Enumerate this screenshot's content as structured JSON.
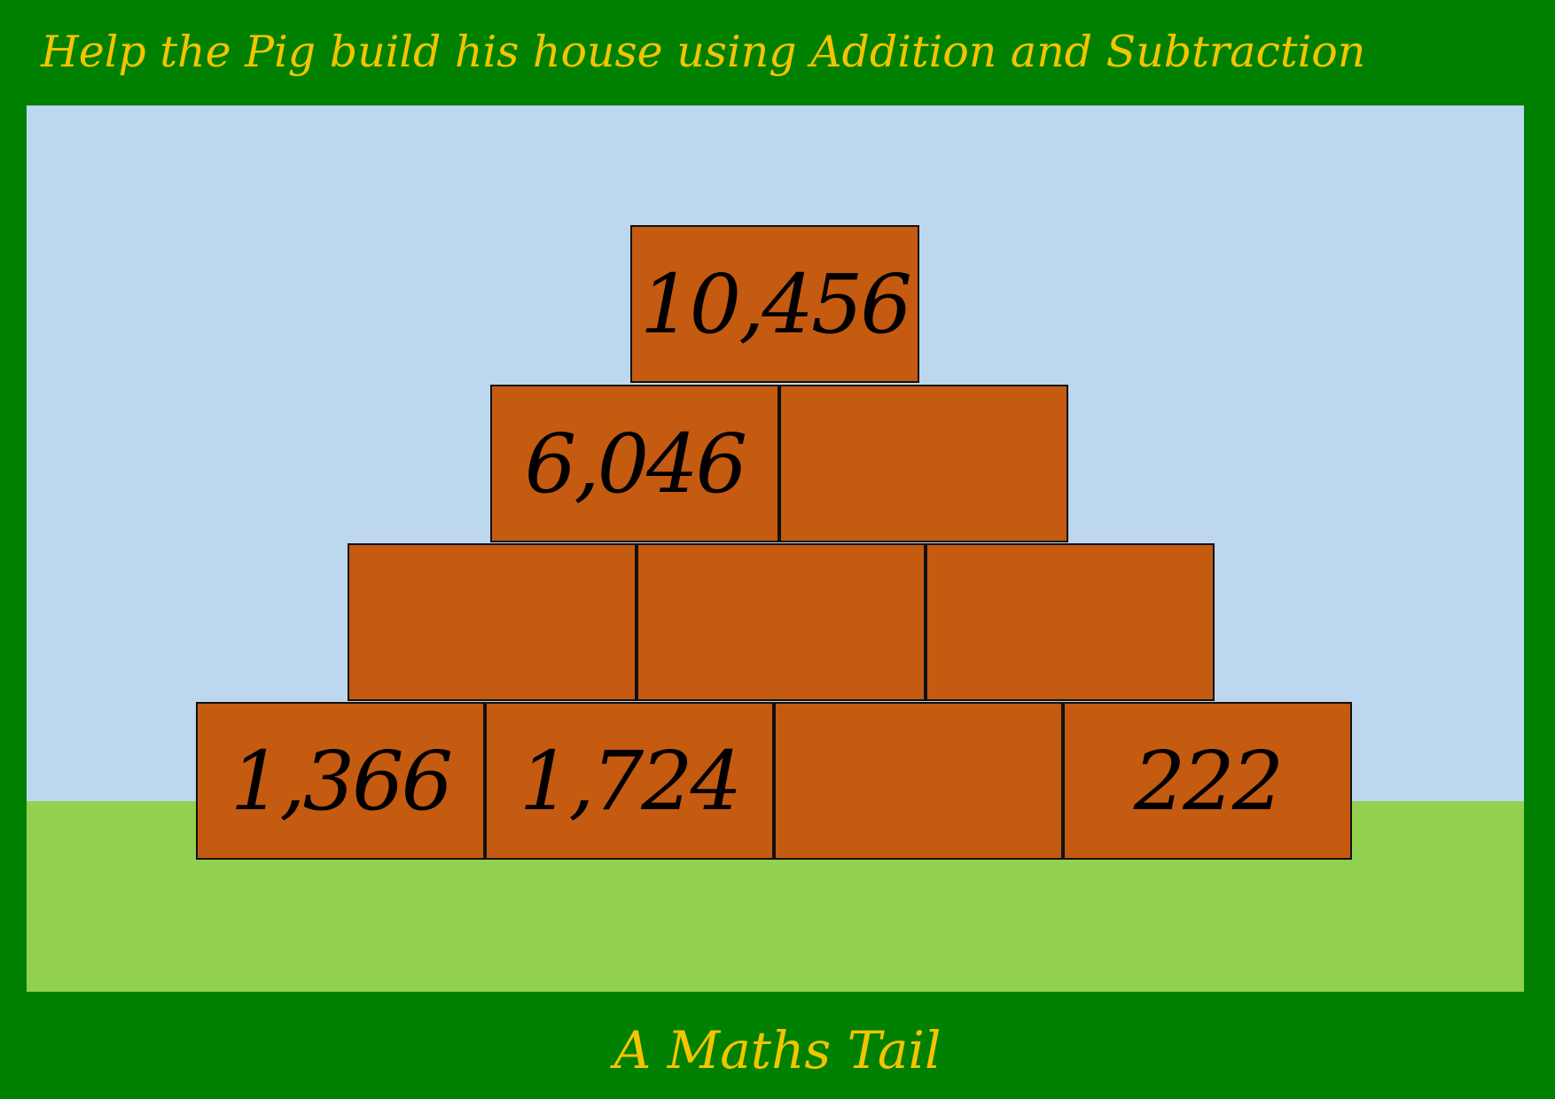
{
  "title": "Help the Pig build his house using Addition and Subtraction",
  "footer": "A Maths Tail",
  "colors": {
    "frame": "#008000",
    "sky": "#bdd7ee",
    "grass": "#92d050",
    "brick": "#c55a11",
    "text_accent": "#f5c400"
  },
  "pyramid": {
    "row1": [
      "10,456"
    ],
    "row2": [
      "6,046",
      ""
    ],
    "row3": [
      "",
      "",
      ""
    ],
    "row4": [
      "1,366",
      "1,724",
      "",
      "222"
    ]
  }
}
